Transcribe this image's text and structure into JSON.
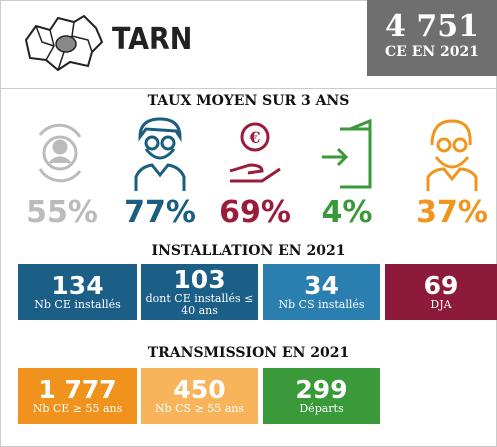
{
  "header": {
    "title": "TARN",
    "count": "4 751",
    "count_label": "CE EN 2021"
  },
  "rates": {
    "title": "TAUX MOYEN SUR 3 ANS",
    "items": [
      "55%",
      "77%",
      "69%",
      "4%",
      "37%"
    ]
  },
  "installation": {
    "title": "INSTALLATION EN 2021",
    "boxes": [
      {
        "value": "134",
        "label": "Nb CE installés"
      },
      {
        "value": "103",
        "label": "dont CE installés ≤ 40 ans"
      },
      {
        "value": "34",
        "label": "Nb CS installés"
      },
      {
        "value": "69",
        "label": "DJA"
      }
    ]
  },
  "transmission": {
    "title": "TRANSMISSION EN 2021",
    "boxes": [
      {
        "value": "1 777",
        "label": "Nb CE ≥ 55 ans"
      },
      {
        "value": "450",
        "label": "Nb CS ≥ 55 ans"
      },
      {
        "value": "299",
        "label": "Départs"
      }
    ]
  }
}
